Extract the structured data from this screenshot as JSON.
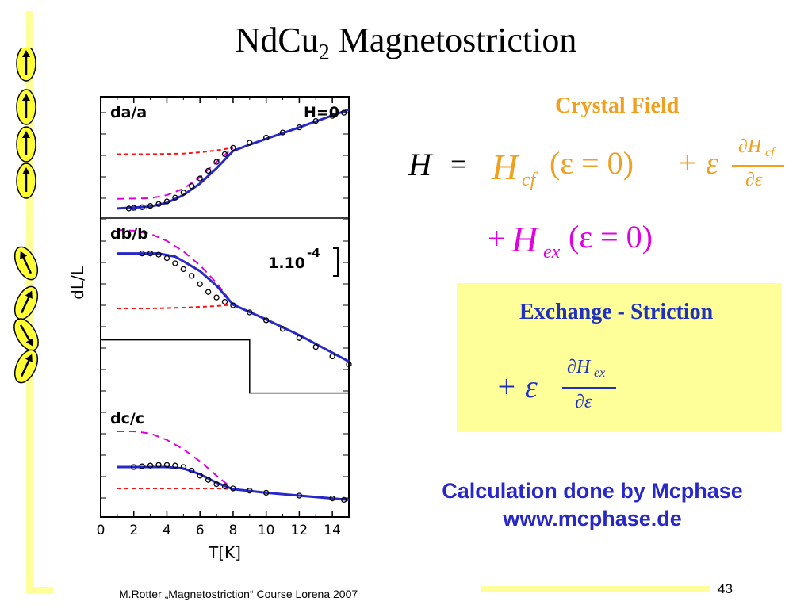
{
  "slide": {
    "title_main": "NdCu",
    "title_sub": "2",
    "title_rest": " Magnetostriction",
    "crystal_field_label": "Crystal Field",
    "exchange_label": "Exchange - Striction",
    "calc_line1": "Calculation done by Mcphase",
    "calc_line2": "www.mcphase.de",
    "footer": "M.Rotter „Magnetostriction“ Course Lorena 2007",
    "page_number": "43",
    "colors": {
      "accent_yellow": "#ffff99",
      "crystal_field": "#f0a020",
      "exchange": "#2030c0",
      "magenta": "#e000e0",
      "blue": "#2828c8"
    }
  },
  "equation": {
    "H": "H",
    "equals": "=",
    "Hcf": "H",
    "cf": "cf",
    "arg": "(ε = 0)",
    "plus_eps": "+ ε",
    "dHcf_num": "∂H",
    "dHcf_den": "∂ε",
    "line2_plus": "+",
    "Hex": "H",
    "ex": "ex",
    "arg2": "(ε = 0)",
    "ex_plus": "+ ε",
    "dHex_num": "∂H",
    "dHex_sub": "ex",
    "dHex_den": "∂ε"
  },
  "spins": {
    "group1": [
      "up",
      "up",
      "up",
      "up"
    ],
    "group2": [
      "up-left",
      "up-right",
      "down-right",
      "up-right"
    ]
  },
  "chart_data": {
    "type": "line",
    "ylabel": "dL/L",
    "xlabel": "T[K]",
    "xlim": [
      0,
      15
    ],
    "xticks": [
      "0",
      "2",
      "4",
      "6",
      "8",
      "10",
      "12",
      "14"
    ],
    "scale_label": "1.10",
    "scale_exp": "-4",
    "panels": [
      {
        "label": "da/a",
        "annotation": "H=0",
        "data": [
          [
            1.7,
            -0.95
          ],
          [
            2,
            -0.94
          ],
          [
            2.5,
            -0.93
          ],
          [
            3,
            -0.91
          ],
          [
            3.5,
            -0.88
          ],
          [
            4,
            -0.84
          ],
          [
            4.5,
            -0.78
          ],
          [
            5,
            -0.7
          ],
          [
            5.5,
            -0.6
          ],
          [
            6,
            -0.48
          ],
          [
            6.5,
            -0.36
          ],
          [
            7,
            -0.22
          ],
          [
            7.5,
            -0.1
          ],
          [
            8,
            0.0
          ],
          [
            9,
            0.08
          ],
          [
            10,
            0.16
          ],
          [
            11,
            0.24
          ],
          [
            12,
            0.32
          ],
          [
            13,
            0.42
          ],
          [
            14,
            0.5
          ],
          [
            14.7,
            0.55
          ]
        ],
        "calc_total": [
          [
            1,
            -0.95
          ],
          [
            3,
            -0.92
          ],
          [
            4,
            -0.86
          ],
          [
            5,
            -0.74
          ],
          [
            6,
            -0.56
          ],
          [
            7,
            -0.32
          ],
          [
            8,
            -0.05
          ],
          [
            9,
            0.05
          ],
          [
            10,
            0.14
          ],
          [
            12,
            0.32
          ],
          [
            15,
            0.6
          ]
        ],
        "crystal_field": [
          [
            1,
            -0.1
          ],
          [
            3,
            -0.1
          ],
          [
            5,
            -0.09
          ],
          [
            6,
            -0.07
          ],
          [
            7,
            -0.04
          ],
          [
            8,
            0.0
          ]
        ],
        "exchange": [
          [
            1,
            -0.8
          ],
          [
            3,
            -0.79
          ],
          [
            4,
            -0.74
          ],
          [
            5,
            -0.64
          ],
          [
            6,
            -0.46
          ],
          [
            7,
            -0.22
          ],
          [
            8,
            0.0
          ]
        ]
      },
      {
        "label": "db/b",
        "data": [
          [
            2.5,
            0
          ],
          [
            3,
            0
          ],
          [
            3.5,
            -0.03
          ],
          [
            4,
            -0.12
          ],
          [
            4.5,
            -0.25
          ],
          [
            5,
            -0.4
          ],
          [
            5.5,
            -0.57
          ],
          [
            6,
            -0.78
          ],
          [
            6.5,
            -0.98
          ],
          [
            7,
            -1.12
          ],
          [
            7.5,
            -1.23
          ],
          [
            8,
            -1.32
          ],
          [
            9,
            -1.5
          ],
          [
            10,
            -1.7
          ],
          [
            11,
            -1.92
          ],
          [
            12,
            -2.15
          ],
          [
            13,
            -2.38
          ],
          [
            14,
            -2.62
          ],
          [
            15,
            -2.82
          ]
        ],
        "calc_total": [
          [
            1,
            0
          ],
          [
            3.5,
            0
          ],
          [
            4.5,
            -0.08
          ],
          [
            5,
            -0.2
          ],
          [
            6,
            -0.45
          ],
          [
            7,
            -0.82
          ],
          [
            8,
            -1.3
          ],
          [
            10,
            -1.68
          ],
          [
            12,
            -2.08
          ],
          [
            15,
            -2.75
          ]
        ],
        "crystal_field": [
          [
            1,
            -1.4
          ],
          [
            3,
            -1.4
          ],
          [
            5,
            -1.38
          ],
          [
            6,
            -1.36
          ],
          [
            7,
            -1.34
          ],
          [
            8,
            -1.3
          ]
        ],
        "exchange": [
          [
            1,
            0.6
          ],
          [
            2,
            0.58
          ],
          [
            3,
            0.5
          ],
          [
            4,
            0.32
          ],
          [
            5,
            0.05
          ],
          [
            6,
            -0.3
          ],
          [
            7,
            -0.75
          ],
          [
            8,
            -1.3
          ]
        ],
        "step_line": [
          [
            0,
            -2.2
          ],
          [
            9,
            -2.2
          ],
          [
            9,
            -3.55
          ],
          [
            15,
            -3.55
          ]
        ]
      },
      {
        "label": "dc/c",
        "data": [
          [
            2,
            0
          ],
          [
            2.5,
            0.01
          ],
          [
            3,
            0.02
          ],
          [
            3.5,
            0.03
          ],
          [
            4,
            0.03
          ],
          [
            4.5,
            0.02
          ],
          [
            5,
            0
          ],
          [
            5.5,
            -0.05
          ],
          [
            6,
            -0.12
          ],
          [
            6.5,
            -0.18
          ],
          [
            7,
            -0.24
          ],
          [
            7.5,
            -0.27
          ],
          [
            8,
            -0.3
          ],
          [
            9,
            -0.33
          ],
          [
            10,
            -0.36
          ],
          [
            12,
            -0.4
          ],
          [
            14,
            -0.44
          ],
          [
            14.7,
            -0.46
          ]
        ],
        "calc_total": [
          [
            1,
            0
          ],
          [
            3,
            0
          ],
          [
            4,
            0
          ],
          [
            5,
            -0.02
          ],
          [
            6,
            -0.1
          ],
          [
            7,
            -0.22
          ],
          [
            8,
            -0.31
          ],
          [
            10,
            -0.36
          ],
          [
            12,
            -0.4
          ],
          [
            15,
            -0.46
          ]
        ],
        "crystal_field": [
          [
            1,
            -0.3
          ],
          [
            4,
            -0.3
          ],
          [
            6,
            -0.3
          ],
          [
            7,
            -0.3
          ],
          [
            8,
            -0.31
          ]
        ],
        "exchange": [
          [
            1,
            0.5
          ],
          [
            2,
            0.5
          ],
          [
            3,
            0.47
          ],
          [
            4,
            0.38
          ],
          [
            5,
            0.25
          ],
          [
            6,
            0.08
          ],
          [
            7,
            -0.12
          ],
          [
            8,
            -0.31
          ]
        ]
      }
    ]
  }
}
